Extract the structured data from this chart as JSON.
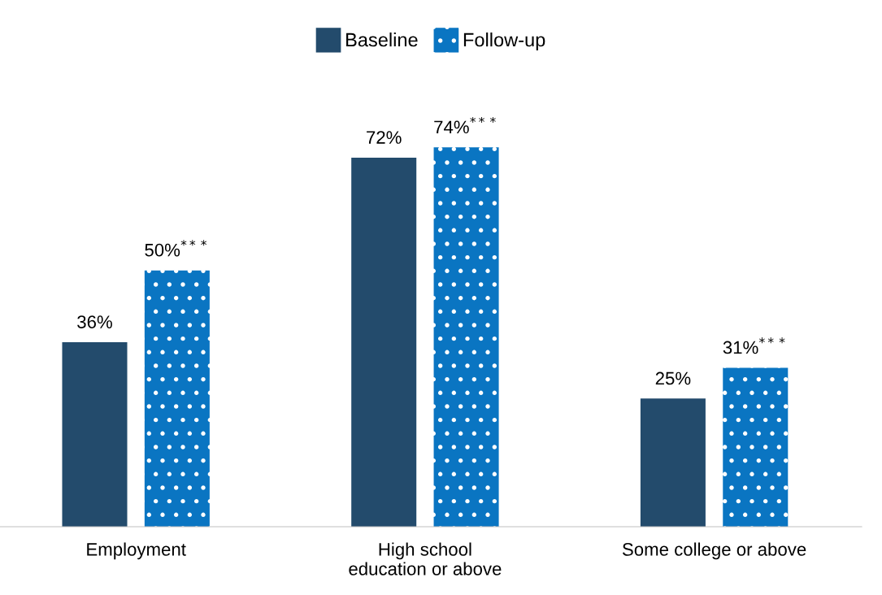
{
  "chart_data": {
    "type": "bar",
    "categories": [
      "Employment",
      "High school\neducation or above",
      "Some college or above"
    ],
    "series": [
      {
        "name": "Baseline",
        "color": "#234b6c",
        "values": [
          36,
          72,
          25
        ],
        "value_labels": [
          "36%",
          "72%",
          "25%"
        ]
      },
      {
        "name": "Follow-up",
        "color": "#0a75c2",
        "values": [
          50,
          74,
          31
        ],
        "value_labels": [
          "50%$^{***}$",
          "74%$^{***}$",
          "31%$^{***}$"
        ]
      }
    ],
    "legend": "top",
    "grid": false,
    "tick_labels": "x"
  }
}
